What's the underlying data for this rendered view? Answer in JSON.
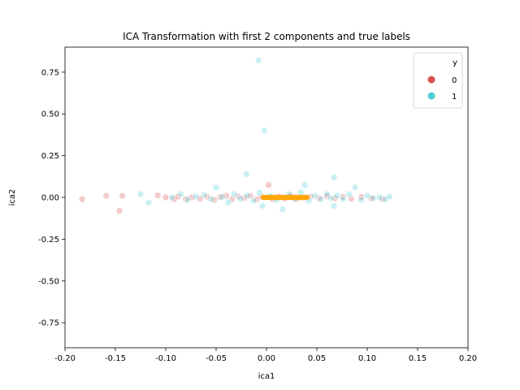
{
  "chart_data": {
    "type": "scatter",
    "title": "ICA Transformation with first 2 components and true labels",
    "xlabel": "ica1",
    "ylabel": "ica2",
    "xlim": [
      -0.2,
      0.2
    ],
    "ylim": [
      -0.9,
      0.9
    ],
    "xticks": [
      "-0.20",
      "-0.15",
      "-0.10",
      "-0.05",
      "0.00",
      "0.05",
      "0.10",
      "0.15",
      "0.20"
    ],
    "yticks": [
      "0.75",
      "0.50",
      "0.25",
      "0.00",
      "-0.25",
      "-0.50",
      "-0.75"
    ],
    "grid": false,
    "legend": {
      "title": "y",
      "position": "top-right",
      "entries": [
        "0",
        "1"
      ]
    },
    "series": [
      {
        "name": "0",
        "color": "#d9534f",
        "points": [
          [
            -0.183,
            -0.01
          ],
          [
            -0.159,
            0.01
          ],
          [
            -0.146,
            -0.08
          ],
          [
            -0.143,
            0.01
          ],
          [
            -0.108,
            0.012
          ],
          [
            -0.1,
            0.0
          ],
          [
            -0.092,
            -0.01
          ],
          [
            -0.088,
            0.005
          ],
          [
            -0.08,
            -0.01
          ],
          [
            -0.074,
            0.0
          ],
          [
            -0.066,
            -0.008
          ],
          [
            -0.059,
            0.004
          ],
          [
            -0.052,
            -0.015
          ],
          [
            -0.046,
            0.002
          ],
          [
            -0.04,
            0.01
          ],
          [
            -0.034,
            -0.01
          ],
          [
            -0.028,
            0.006
          ],
          [
            -0.022,
            -0.004
          ],
          [
            -0.016,
            0.01
          ],
          [
            -0.01,
            -0.012
          ],
          [
            -0.005,
            0.004
          ],
          [
            0.002,
            0.075
          ],
          [
            0.006,
            -0.01
          ],
          [
            0.012,
            0.004
          ],
          [
            0.018,
            -0.006
          ],
          [
            0.024,
            0.012
          ],
          [
            0.03,
            -0.01
          ],
          [
            0.036,
            0.0
          ],
          [
            0.044,
            0.006
          ],
          [
            0.052,
            -0.004
          ],
          [
            0.06,
            0.008
          ],
          [
            0.068,
            -0.006
          ],
          [
            0.076,
            0.004
          ],
          [
            0.084,
            -0.008
          ],
          [
            0.094,
            0.003
          ],
          [
            0.104,
            -0.005
          ],
          [
            0.115,
            -0.01
          ]
        ]
      },
      {
        "name": "1",
        "color": "#4ecdd6",
        "points": [
          [
            -0.008,
            0.82
          ],
          [
            -0.002,
            0.4
          ],
          [
            -0.02,
            0.14
          ],
          [
            0.067,
            0.12
          ],
          [
            -0.125,
            0.02
          ],
          [
            -0.117,
            -0.03
          ],
          [
            -0.094,
            0.0
          ],
          [
            -0.085,
            0.02
          ],
          [
            -0.078,
            -0.015
          ],
          [
            -0.07,
            0.005
          ],
          [
            -0.062,
            0.015
          ],
          [
            -0.055,
            -0.01
          ],
          [
            -0.05,
            0.06
          ],
          [
            -0.044,
            0.004
          ],
          [
            -0.038,
            -0.03
          ],
          [
            -0.032,
            0.02
          ],
          [
            -0.026,
            -0.008
          ],
          [
            -0.019,
            0.01
          ],
          [
            -0.013,
            -0.02
          ],
          [
            -0.007,
            0.03
          ],
          [
            -0.004,
            -0.05
          ],
          [
            0.004,
            0.01
          ],
          [
            0.01,
            -0.015
          ],
          [
            0.016,
            -0.07
          ],
          [
            0.022,
            0.02
          ],
          [
            0.028,
            -0.01
          ],
          [
            0.034,
            0.03
          ],
          [
            0.038,
            0.075
          ],
          [
            0.042,
            -0.02
          ],
          [
            0.048,
            0.01
          ],
          [
            0.054,
            -0.01
          ],
          [
            0.06,
            0.02
          ],
          [
            0.064,
            -0.005
          ],
          [
            0.07,
            0.01
          ],
          [
            0.067,
            -0.05
          ],
          [
            0.076,
            -0.01
          ],
          [
            0.082,
            0.02
          ],
          [
            0.088,
            0.06
          ],
          [
            0.094,
            -0.015
          ],
          [
            0.1,
            0.01
          ],
          [
            0.106,
            -0.005
          ],
          [
            0.112,
            0.0
          ],
          [
            0.118,
            -0.01
          ],
          [
            0.122,
            0.005
          ]
        ]
      }
    ],
    "highlight": {
      "color": "#ffa500",
      "x_range": [
        -0.003,
        0.04
      ],
      "y": 0.0
    }
  }
}
